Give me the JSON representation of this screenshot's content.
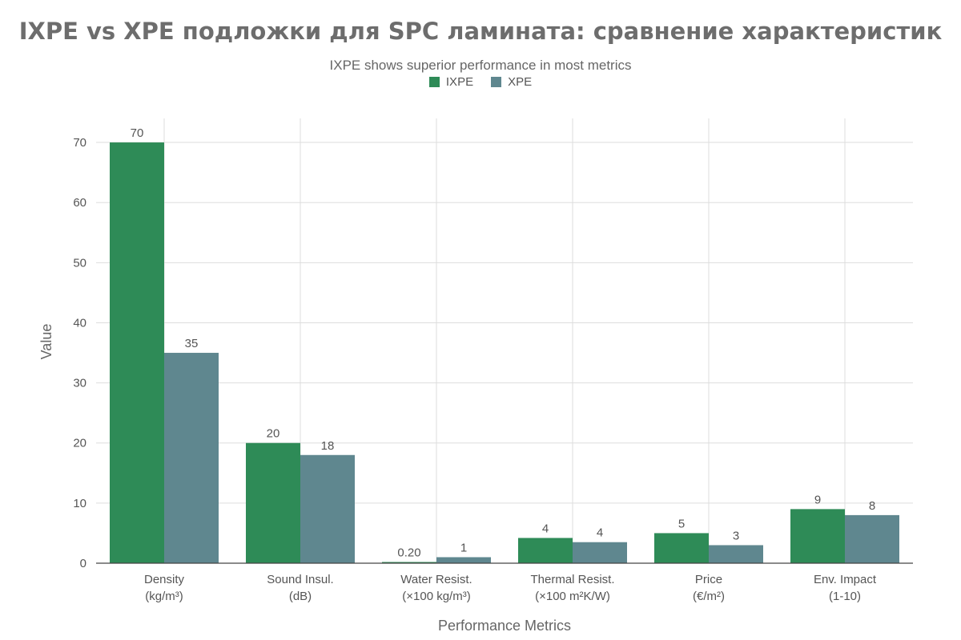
{
  "chart_data": {
    "type": "bar",
    "title": "IXPE vs XPE подложки для SPC ламината: сравнение характеристик",
    "subtitle": "IXPE shows superior performance in most metrics",
    "xlabel": "Performance Metrics",
    "ylabel": "Value",
    "ylim": [
      0,
      74
    ],
    "yticks": [
      0,
      10,
      20,
      30,
      40,
      50,
      60,
      70
    ],
    "grid": true,
    "legend_position": "top-center",
    "categories": [
      [
        "Density",
        "(kg/m³)"
      ],
      [
        "Sound Insul.",
        "(dB)"
      ],
      [
        "Water Resist.",
        "(×100 kg/m³)"
      ],
      [
        "Thermal Resist.",
        "(×100 m²K/W)"
      ],
      [
        "Price",
        "(€/m²)"
      ],
      [
        "Env. Impact",
        "(1-10)"
      ]
    ],
    "series": [
      {
        "name": "IXPE",
        "color": "#2e8b57",
        "values": [
          70,
          20,
          0.2,
          4.2,
          5,
          9
        ],
        "labels": [
          "70",
          "20",
          "0.20",
          "4",
          "5",
          "9"
        ]
      },
      {
        "name": "XPE",
        "color": "#5f878f",
        "values": [
          35,
          18,
          1,
          3.5,
          3,
          8
        ],
        "labels": [
          "35",
          "18",
          "1",
          "4",
          "3",
          "8"
        ]
      }
    ]
  }
}
